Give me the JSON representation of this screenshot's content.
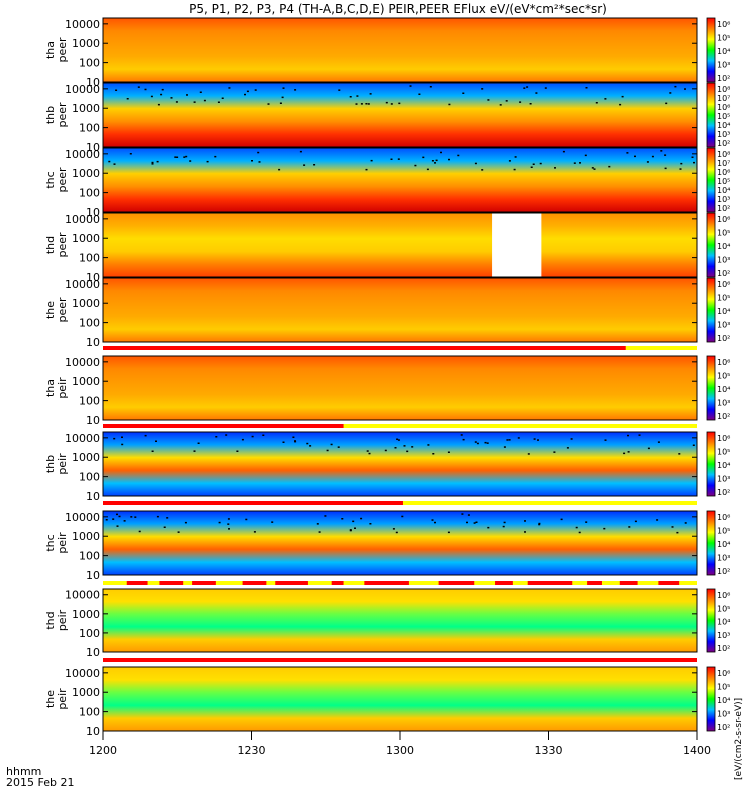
{
  "chart_data": {
    "type": "heatmap",
    "title": "P5, P1, P2, P3, P4 (TH-A,B,C,D,E) PEIR,PEER EFlux eV/(eV*cm²*sec*sr)",
    "xlabel": "hhmm",
    "date_label": "2015 Feb 21",
    "x_range": [
      "1200",
      "1400"
    ],
    "x_ticks": [
      "1200",
      "1230",
      "1300",
      "1330",
      "1400"
    ],
    "colorbar_unit": "[eV/(cm2-s-sr-eV)]",
    "y_ticks": [
      "10000",
      "1000",
      "100",
      "10"
    ],
    "y_range": [
      10,
      20000
    ],
    "panels": [
      {
        "id": "tha_peer",
        "label": "tha peer",
        "palette": "warm",
        "cb_ticks": [
          "10⁶",
          "10⁵",
          "10⁴",
          "10³",
          "10²"
        ]
      },
      {
        "id": "thb_peer",
        "label": "thb peer",
        "palette": "banded",
        "cb_ticks": [
          "10⁸",
          "10⁷",
          "10⁶",
          "10⁵",
          "10⁴",
          "10³",
          "10²"
        ]
      },
      {
        "id": "thc_peer",
        "label": "thc peer",
        "palette": "banded",
        "cb_ticks": [
          "10⁸",
          "10⁷",
          "10⁶",
          "10⁵",
          "10⁴",
          "10³",
          "10²"
        ]
      },
      {
        "id": "thd_peer",
        "label": "thd peer",
        "palette": "mixed",
        "cb_ticks": [
          "10⁶",
          "10⁵",
          "10⁴",
          "10³",
          "10²"
        ]
      },
      {
        "id": "the_peer",
        "label": "the peer",
        "palette": "warm",
        "cb_ticks": [
          "10⁶",
          "10⁵",
          "10⁴",
          "10³",
          "10²"
        ]
      },
      {
        "id": "tha_peir",
        "label": "tha peir",
        "palette": "warm",
        "cb_ticks": [
          "10⁶",
          "10⁵",
          "10⁴",
          "10³",
          "10²"
        ]
      },
      {
        "id": "thb_peir",
        "label": "thb peir",
        "palette": "ion",
        "cb_ticks": [
          "10⁶",
          "10⁵",
          "10⁴",
          "10³",
          "10²"
        ]
      },
      {
        "id": "thc_peir",
        "label": "thc peir",
        "palette": "ion",
        "cb_ticks": [
          "10⁶",
          "10⁵",
          "10⁴",
          "10³",
          "10²"
        ]
      },
      {
        "id": "thd_peir",
        "label": "thd peir",
        "palette": "green",
        "cb_ticks": [
          "10⁶",
          "10⁵",
          "10⁴",
          "10³",
          "10²"
        ]
      },
      {
        "id": "the_peir",
        "label": "the peir",
        "palette": "green",
        "cb_ticks": [
          "10⁶",
          "10⁵",
          "10⁴",
          "10³",
          "10²"
        ]
      }
    ]
  }
}
